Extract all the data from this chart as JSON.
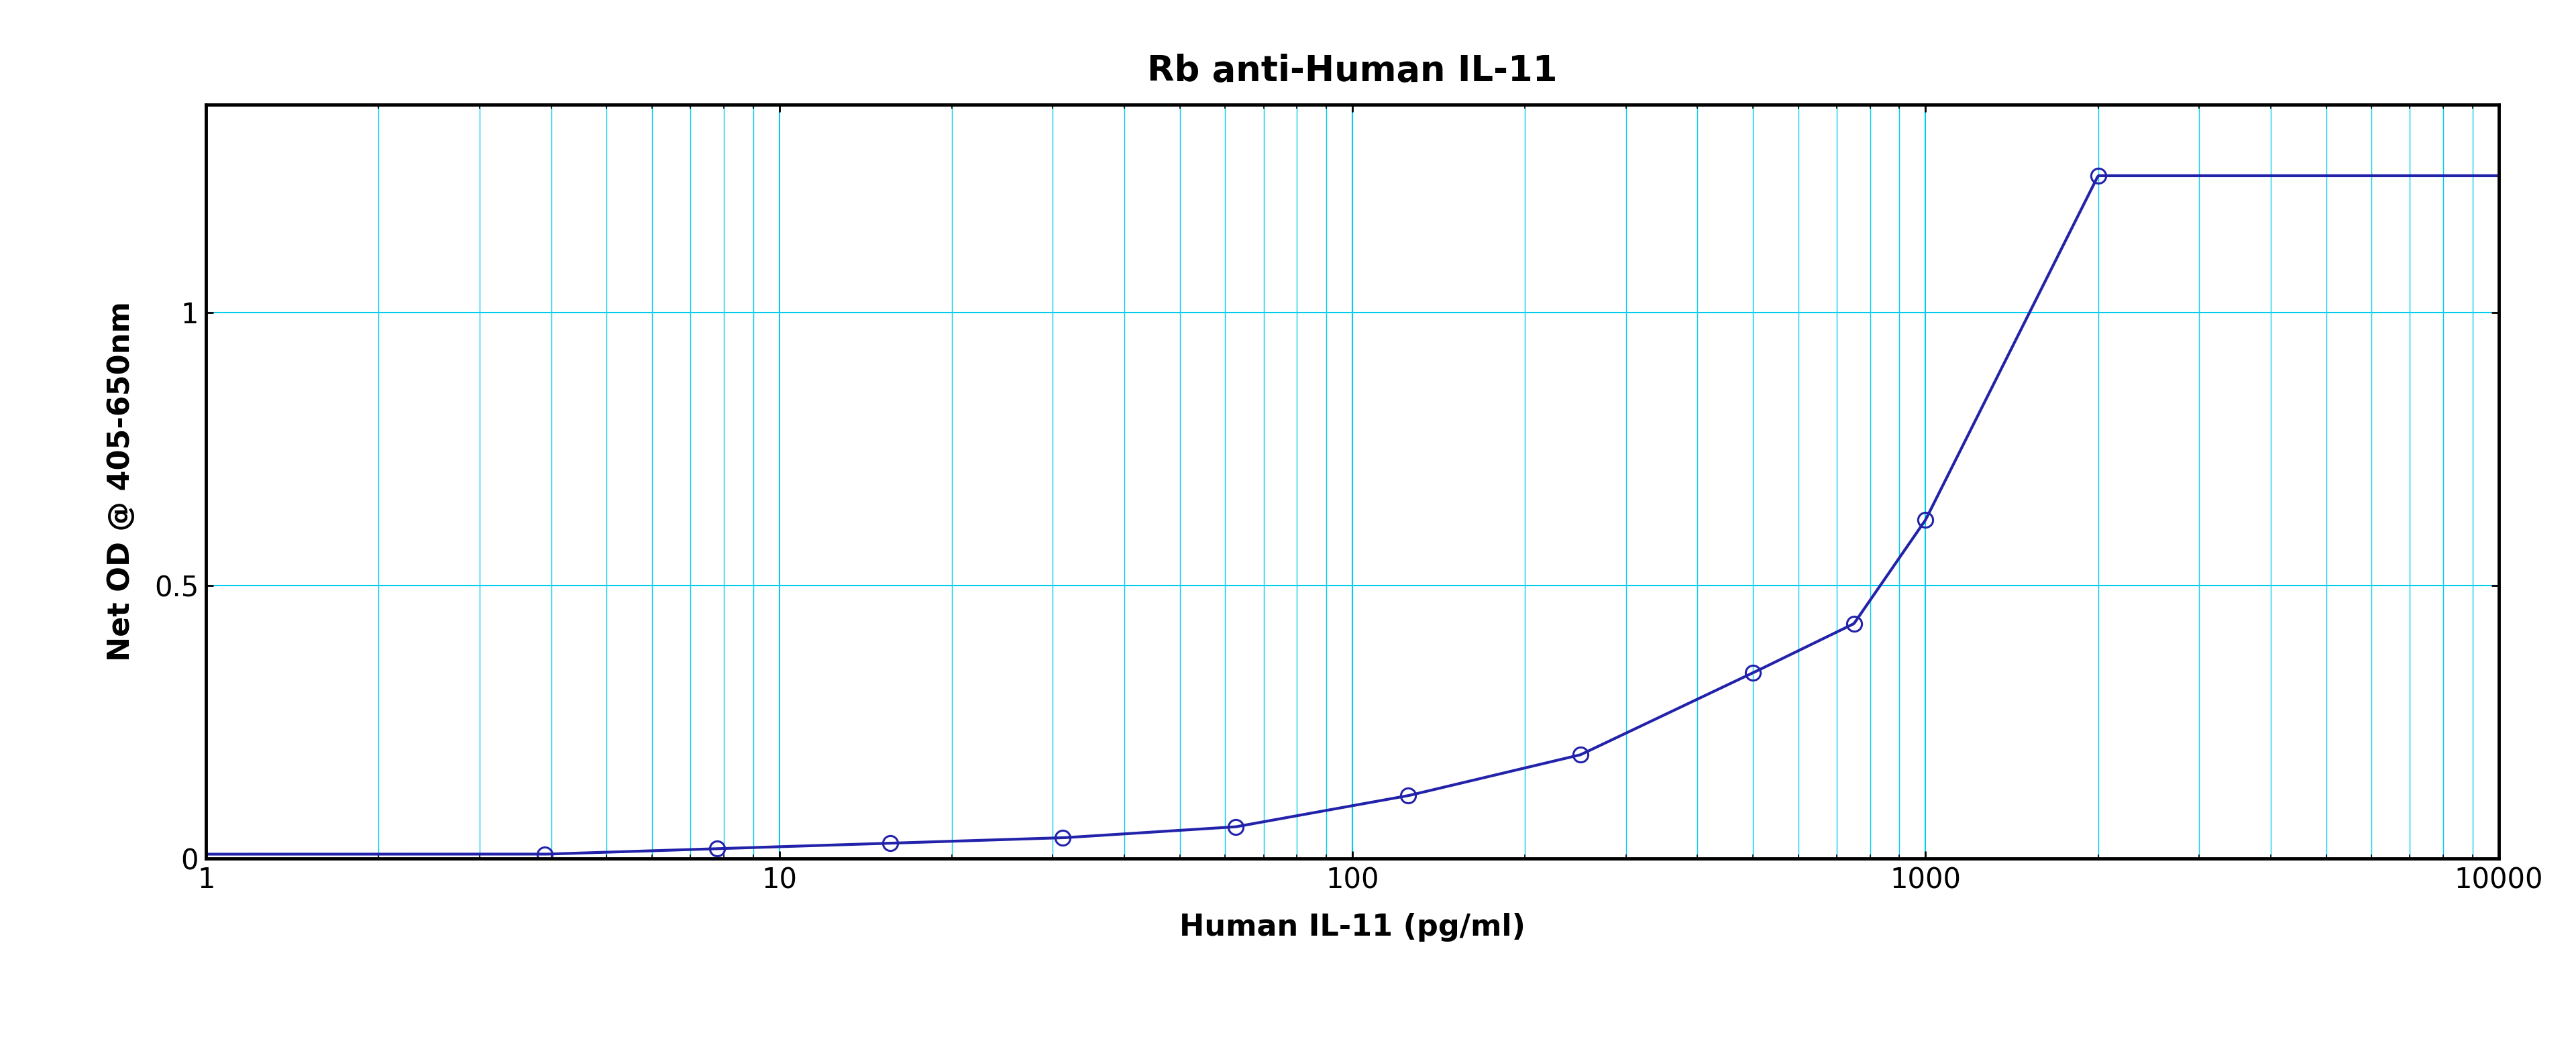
{
  "title": "Rb anti-Human IL-11",
  "xlabel": "Human IL-11 (pg/ml)",
  "ylabel": "Net OD @ 405-650nm",
  "x_data": [
    3.9,
    7.8,
    15.6,
    31.25,
    62.5,
    125,
    250,
    500,
    750,
    1000,
    2000
  ],
  "y_data": [
    0.008,
    0.018,
    0.028,
    0.038,
    0.058,
    0.115,
    0.19,
    0.34,
    0.43,
    0.62,
    1.25
  ],
  "xlim_log": [
    0,
    4
  ],
  "ylim": [
    0,
    1.38
  ],
  "yticks": [
    0,
    0.5,
    1
  ],
  "xtick_vals": [
    1,
    10,
    100,
    1000,
    10000
  ],
  "xtick_labels": [
    "1",
    "10",
    "100",
    "1000",
    "10000"
  ],
  "curve_color": "#2222aa",
  "marker_color": "#2222aa",
  "grid_color": "#00ccee",
  "background_color": "#ffffff",
  "title_fontsize": 38,
  "label_fontsize": 32,
  "tick_fontsize": 30,
  "marker_size": 16,
  "marker_linewidth": 2.2,
  "line_width": 3.0
}
